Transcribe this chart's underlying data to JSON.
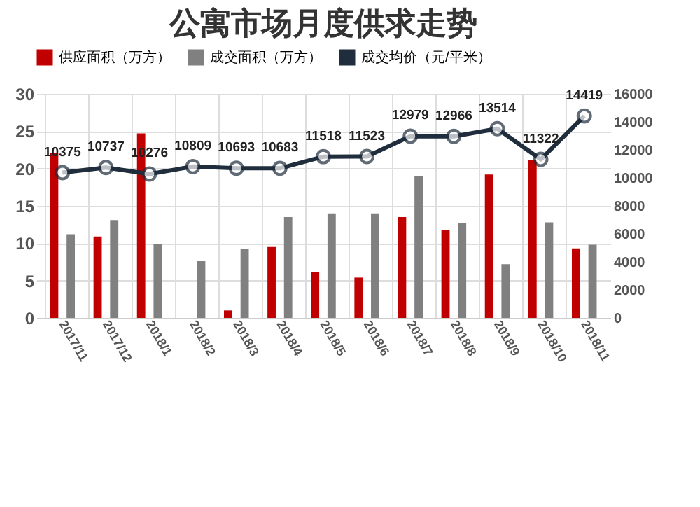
{
  "chart_data": {
    "type": "bar",
    "title": "公寓市场月度供求走势",
    "categories": [
      "2017/11",
      "2017/12",
      "2018/1",
      "2018/2",
      "2018/3",
      "2018/4",
      "2018/5",
      "2018/6",
      "2018/7",
      "2018/8",
      "2018/9",
      "2018/10",
      "2018/11"
    ],
    "series": [
      {
        "name": "供应面积（万方）",
        "color": "#c00000",
        "values": [
          22.1,
          10.9,
          24.7,
          0,
          1.0,
          9.5,
          6.1,
          5.4,
          13.5,
          11.8,
          19.2,
          21.1,
          9.3
        ]
      },
      {
        "name": "成交面积（万方）",
        "color": "#808080",
        "values": [
          11.2,
          13.1,
          9.9,
          7.6,
          9.2,
          13.5,
          14.0,
          14.0,
          19.0,
          12.7,
          7.2,
          12.8,
          9.8
        ]
      },
      {
        "name": "成交均价（元/平米）",
        "type": "line",
        "axis": "y2",
        "color": "#1f2d3d",
        "marker": "circle",
        "values": [
          10375,
          10737,
          10276,
          10809,
          10693,
          10683,
          11518,
          11523,
          12979,
          12966,
          13514,
          11322,
          14419
        ],
        "value_labels": [
          "10375",
          "10737",
          "10276",
          "10809",
          "10693",
          "10683",
          "11518",
          "11523",
          "12979",
          "12966",
          "13514",
          "11322",
          "14419"
        ]
      }
    ],
    "ylim": [
      0,
      30
    ],
    "yticks": [
      0,
      5,
      10,
      15,
      20,
      25,
      30
    ],
    "y2lim": [
      0,
      16000
    ],
    "y2ticks": [
      0,
      2000,
      4000,
      6000,
      8000,
      10000,
      12000,
      14000,
      16000
    ],
    "grid": true,
    "legend": "top"
  }
}
